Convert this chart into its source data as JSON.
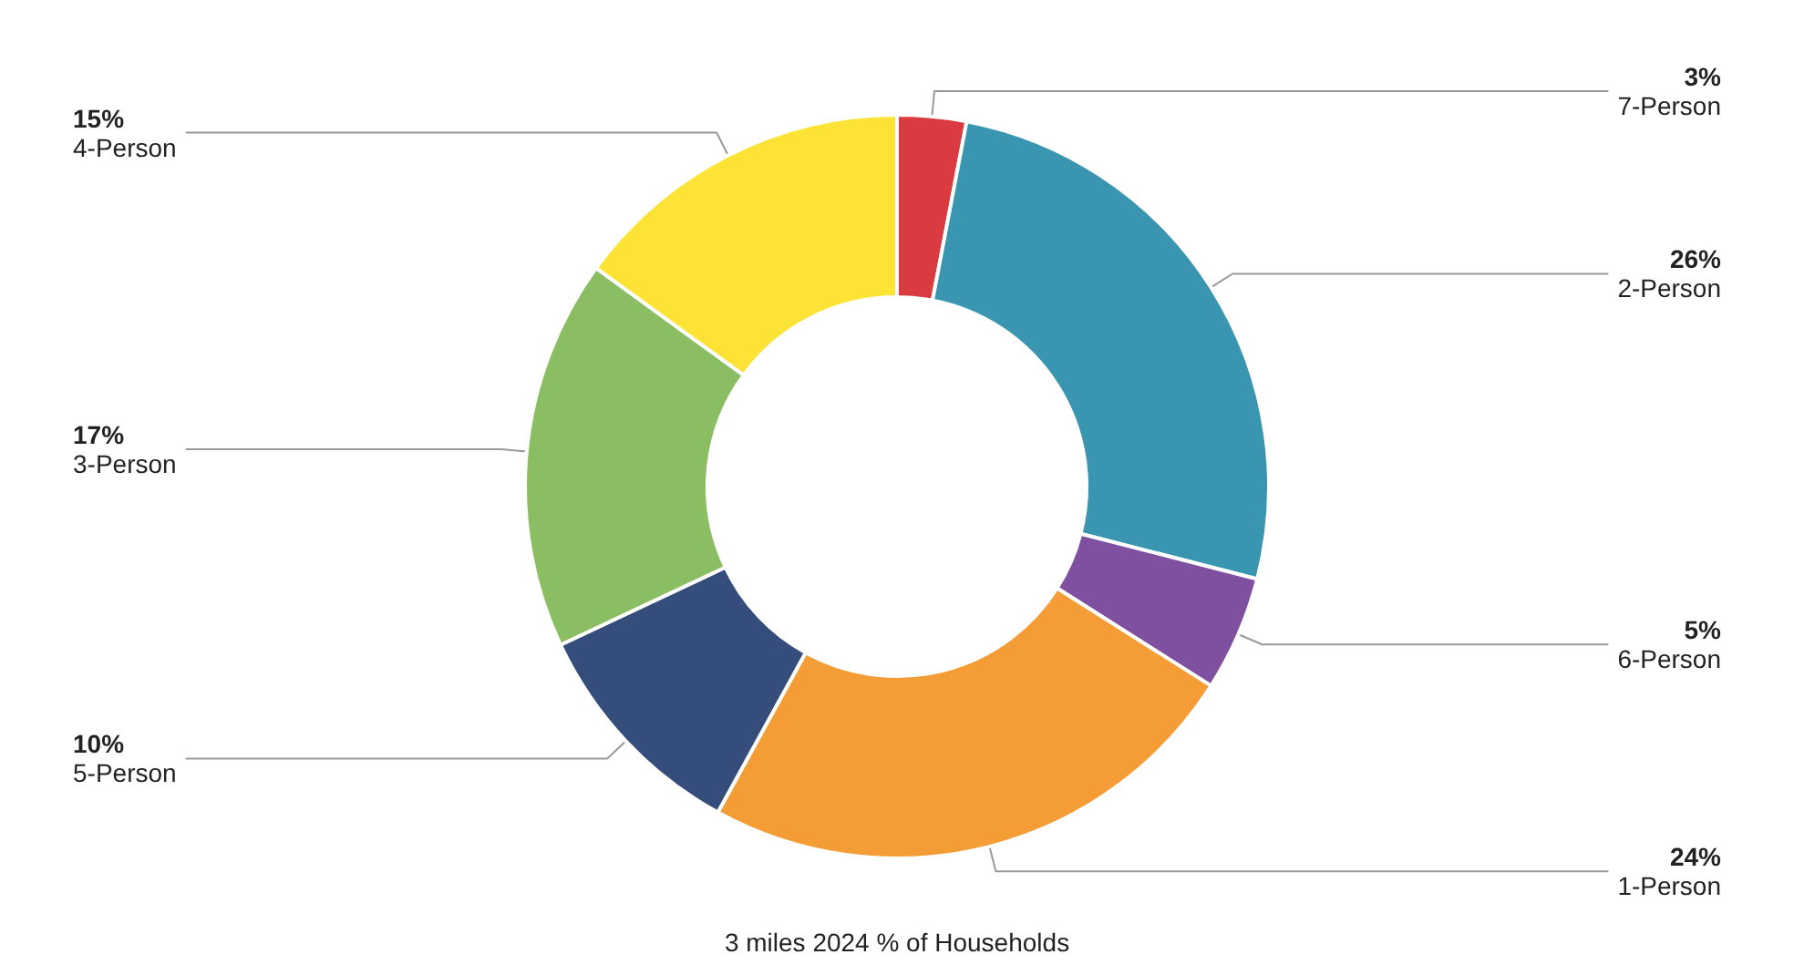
{
  "chart_data": {
    "type": "donut",
    "title": "3 miles 2024 % of Households",
    "categories": [
      "7-Person",
      "2-Person",
      "6-Person",
      "1-Person",
      "5-Person",
      "3-Person",
      "4-Person"
    ],
    "values": [
      3,
      26,
      5,
      24,
      10,
      17,
      15
    ],
    "value_labels": [
      "3%",
      "26%",
      "5%",
      "24%",
      "10%",
      "17%",
      "15%"
    ],
    "colors": [
      "#d93b41",
      "#3a95b1",
      "#8050a0",
      "#f49c36",
      "#354d7b",
      "#8bbd62",
      "#fde335"
    ],
    "legend": false
  }
}
